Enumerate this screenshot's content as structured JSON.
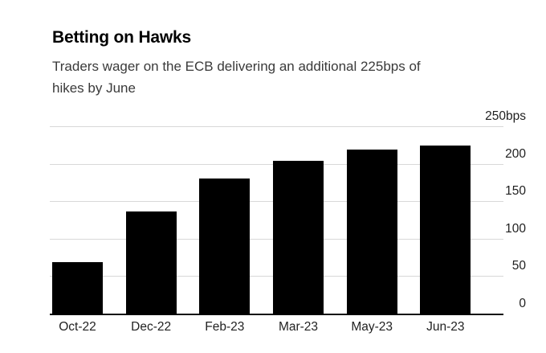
{
  "header": {
    "title": "Betting on Hawks",
    "subtitle": "Traders wager on the ECB delivering an additional 225bps of\nhikes by June"
  },
  "chart_data": {
    "type": "bar",
    "title": "Betting on Hawks",
    "subtitle": "Traders wager on the ECB delivering an additional 225bps of hikes by June",
    "categories": [
      "Oct-22",
      "Dec-22",
      "Feb-23",
      "Mar-23",
      "May-23",
      "Jun-23"
    ],
    "values": [
      70,
      137,
      181,
      205,
      220,
      225
    ],
    "unit": "bps",
    "xlabel": "",
    "ylabel": "bps",
    "ylim": [
      0,
      250
    ],
    "yticks": [
      {
        "value": 0,
        "label": "0"
      },
      {
        "value": 50,
        "label": "50"
      },
      {
        "value": 100,
        "label": "100"
      },
      {
        "value": 150,
        "label": "150"
      },
      {
        "value": 200,
        "label": "200"
      },
      {
        "value": 250,
        "label": "250bps"
      }
    ],
    "grid": "horizontal",
    "legend": false,
    "y_axis_side": "right"
  },
  "colors": {
    "bar": "#000000",
    "gridline": "#d8d8d8",
    "axis_line": "#0f0f0f",
    "title_text": "#000000",
    "subtitle_text": "#3a3a3a",
    "tick_text": "#222222",
    "background": "#ffffff"
  }
}
